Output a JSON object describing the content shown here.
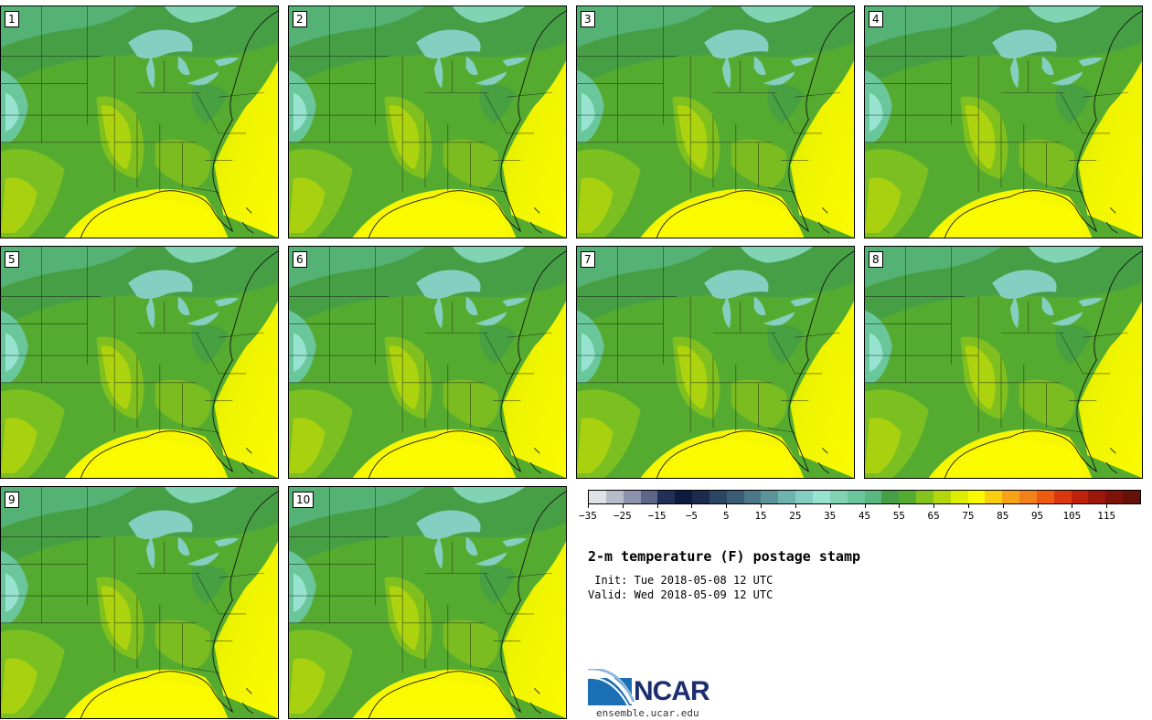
{
  "figure": {
    "title": "2-m temperature (F) postage stamp",
    "init_label": " Init:",
    "init_value": "Tue 2018-05-08 12 UTC",
    "valid_label": "Valid:",
    "valid_value": "Wed 2018-05-09 12 UTC"
  },
  "panels": [
    {
      "number": "1"
    },
    {
      "number": "2"
    },
    {
      "number": "3"
    },
    {
      "number": "4"
    },
    {
      "number": "5"
    },
    {
      "number": "6"
    },
    {
      "number": "7"
    },
    {
      "number": "8"
    },
    {
      "number": "9"
    },
    {
      "number": "10"
    }
  ],
  "colorbar": {
    "colors": [
      "#dfe1e6",
      "#b7bccb",
      "#8c93ad",
      "#5c6686",
      "#223057",
      "#0c1a3d",
      "#1b2b4b",
      "#2c4562",
      "#3b5c75",
      "#4b7786",
      "#5c9599",
      "#6fb3ae",
      "#85cfc2",
      "#98e3d0",
      "#80d3b3",
      "#6ac69b",
      "#58b87f",
      "#469f45",
      "#55ab2f",
      "#84c21e",
      "#b5d60c",
      "#dded00",
      "#fbfb00",
      "#f8cf0e",
      "#f6a318",
      "#f2811b",
      "#ed5b13",
      "#db380e",
      "#bd220b",
      "#9b160b",
      "#7e1208",
      "#651008"
    ],
    "tick_labels": [
      "−35",
      "−25",
      "−15",
      "−5",
      "5",
      "15",
      "25",
      "35",
      "45",
      "55",
      "65",
      "75",
      "85",
      "95",
      "105",
      "115"
    ]
  },
  "logo": {
    "text": "NCAR",
    "website": "ensemble.ucar.edu"
  }
}
